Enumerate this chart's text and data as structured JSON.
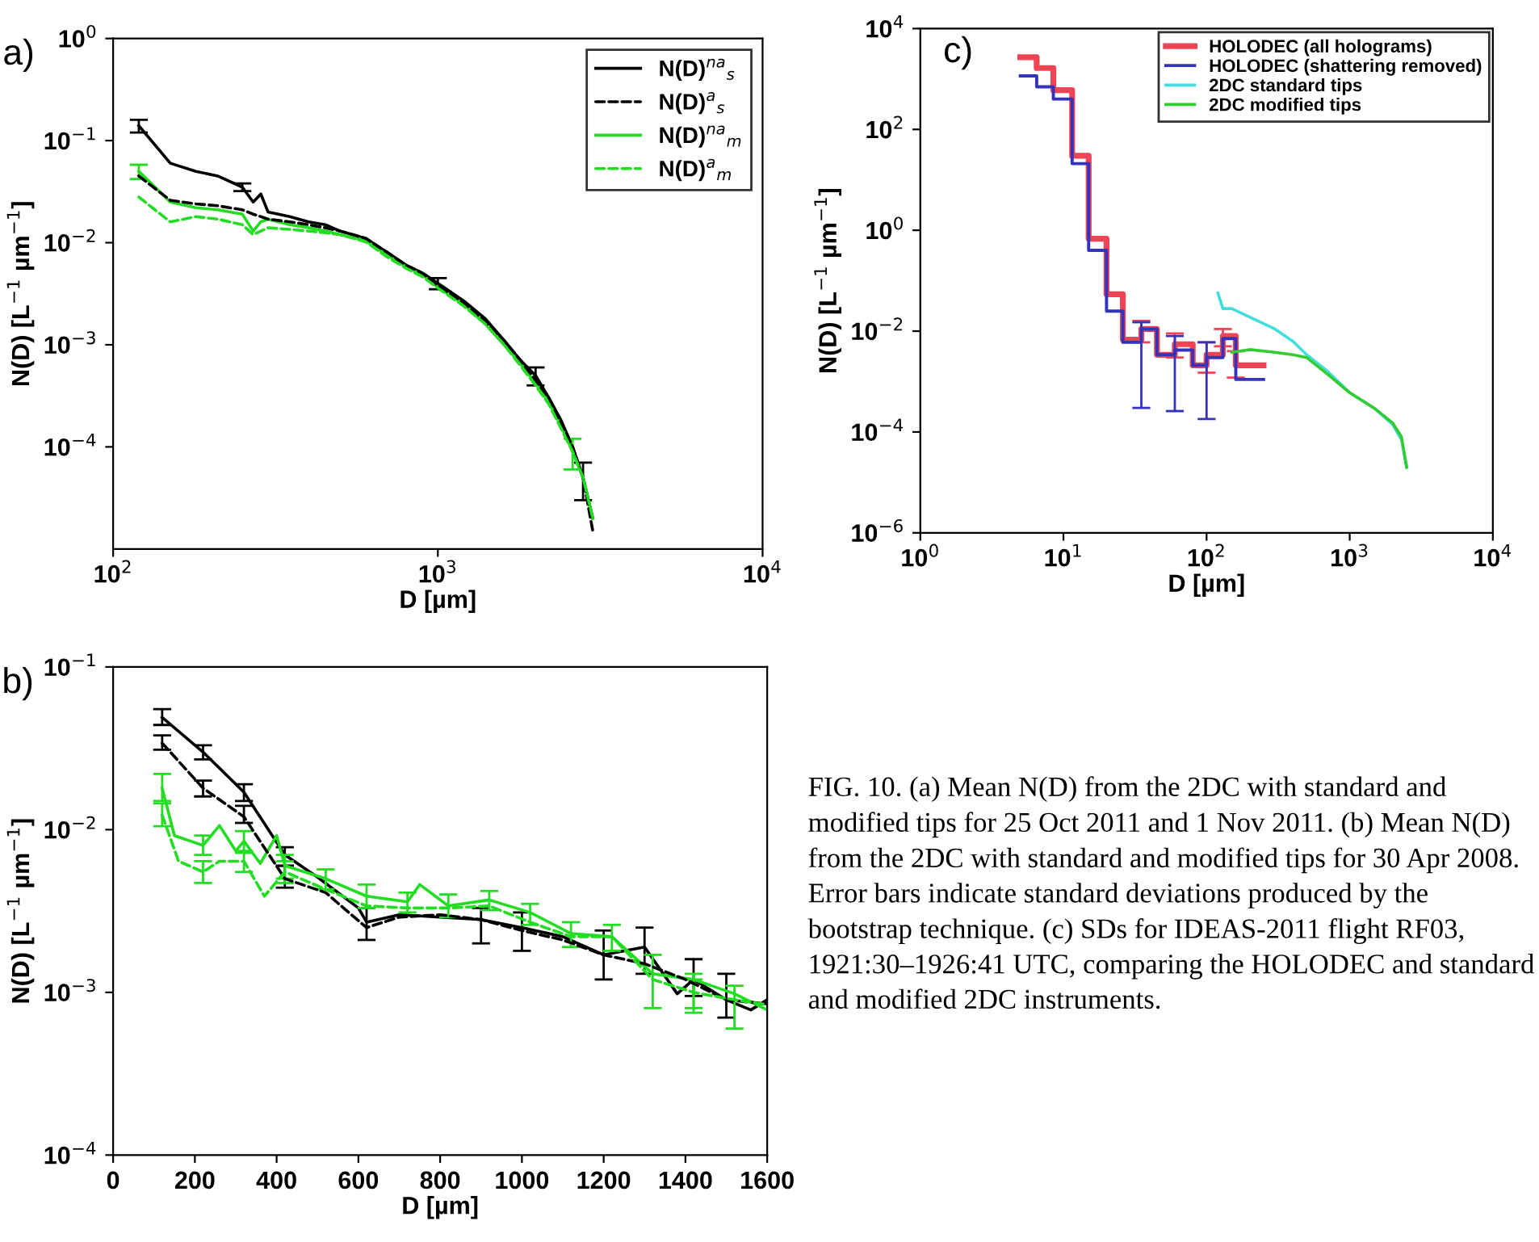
{
  "chart_data": [
    {
      "type": "line",
      "xlabel": "D [µm]",
      "ylabel": "N(D) [L$^{−1}$ µm$^{−1}$]",
      "log": "xy",
      "xlim": [
        100,
        10000
      ],
      "ylim": [
        1e-05,
        1
      ],
      "xticks": [
        {
          "value": 100,
          "label": "10$^{2}$"
        },
        {
          "value": 1000,
          "label": "10$^{3}$"
        },
        {
          "value": 10000,
          "label": "10$^{4}$"
        }
      ],
      "yticks": [
        {
          "value": 1,
          "label": "10$^{0}$"
        },
        {
          "value": 0.1,
          "label": "10$^{−1}$"
        },
        {
          "value": 0.01,
          "label": "10$^{−2}$"
        },
        {
          "value": 0.001,
          "label": "10$^{−3}$"
        },
        {
          "value": 0.0001,
          "label": "10$^{−4}$"
        }
      ],
      "legend": "top right",
      "grid": false,
      "annotations": [
        "a)"
      ],
      "x": [
        120,
        150,
        180,
        210,
        250,
        270,
        285,
        300,
        350,
        400,
        450,
        500,
        600,
        700,
        800,
        900,
        1000,
        1200,
        1400,
        1600,
        1800,
        2000,
        2200,
        2400,
        2600,
        2800,
        3000
      ],
      "series": [
        {
          "name": "N(D)$^{na}$$_{s}$",
          "color": "#000000",
          "line_style": "solid",
          "values": [
            0.14,
            0.06,
            0.05,
            0.045,
            0.035,
            0.025,
            0.03,
            0.02,
            0.018,
            0.016,
            0.015,
            0.013,
            0.011,
            0.008,
            0.006,
            0.005,
            0.004,
            0.0027,
            0.0018,
            0.0011,
            0.0007,
            0.0005,
            0.0003,
            0.00018,
            0.0001,
            5e-05,
            2e-05
          ],
          "errors": [
            [
              0.12,
              0.16
            ],
            null,
            null,
            null,
            [
              0.032,
              0.038
            ],
            null,
            null,
            null,
            null,
            null,
            null,
            null,
            null,
            null,
            null,
            null,
            [
              0.0035,
              0.0045
            ],
            null,
            null,
            null,
            null,
            [
              0.0004,
              0.0006
            ],
            null,
            null,
            null,
            [
              3e-05,
              7e-05
            ],
            null
          ]
        },
        {
          "name": "N(D)$^{a}$$_{s}$",
          "color": "#000000",
          "line_style": "dashed",
          "values": [
            0.045,
            0.026,
            0.024,
            0.023,
            0.021,
            0.019,
            0.018,
            0.017,
            0.016,
            0.015,
            0.014,
            0.013,
            0.011,
            0.008,
            0.006,
            0.005,
            0.0038,
            0.0026,
            0.0017,
            0.0011,
            0.0007,
            0.00045,
            0.0003,
            0.00017,
            0.0001,
            5e-05,
            1.5e-05
          ]
        },
        {
          "name": "N(D)$^{na}$$_{m}$",
          "color": "#22dd22",
          "line_style": "solid",
          "values": [
            0.05,
            0.025,
            0.022,
            0.021,
            0.019,
            0.013,
            0.016,
            0.017,
            0.015,
            0.014,
            0.013,
            0.012,
            0.0105,
            0.0075,
            0.0058,
            0.0048,
            0.0037,
            0.0025,
            0.0016,
            0.001,
            0.00065,
            0.00042,
            0.00027,
            0.00016,
            9e-05,
            5e-05,
            2e-05
          ],
          "errors": [
            [
              0.042,
              0.058
            ],
            null,
            null,
            null,
            null,
            null,
            null,
            null,
            null,
            null,
            null,
            null,
            null,
            null,
            null,
            null,
            null,
            null,
            null,
            null,
            null,
            null,
            null,
            null,
            [
              6e-05,
              0.00012
            ],
            null,
            null
          ]
        },
        {
          "name": "N(D)$^{a}$$_{m}$",
          "color": "#22dd22",
          "line_style": "dashed",
          "values": [
            0.028,
            0.016,
            0.018,
            0.017,
            0.015,
            0.012,
            0.013,
            0.014,
            0.0135,
            0.013,
            0.0125,
            0.012,
            0.0102,
            0.0072,
            0.0056,
            0.0046,
            0.0036,
            0.0024,
            0.0016,
            0.001,
            0.00062,
            0.0004,
            0.00026,
            0.00015,
            9e-05,
            5e-05,
            2e-05
          ]
        }
      ]
    },
    {
      "type": "line",
      "xlabel": "D [µm]",
      "ylabel": "N(D) [L$^{−1}$ µm$^{−1}$]",
      "log": "y",
      "xlim": [
        0,
        1600
      ],
      "ylim": [
        0.0001,
        0.1
      ],
      "xticks": [
        0,
        200,
        400,
        600,
        800,
        1000,
        1200,
        1400,
        1600
      ],
      "yticks": [
        {
          "value": 0.1,
          "label": "10$^{−1}$"
        },
        {
          "value": 0.01,
          "label": "10$^{−2}$"
        },
        {
          "value": 0.001,
          "label": "10$^{−3}$"
        },
        {
          "value": 0.0001,
          "label": "10$^{−4}$"
        }
      ],
      "legend": false,
      "grid": false,
      "annotations": [
        "b)"
      ],
      "series": [
        {
          "color": "#000000",
          "line_style": "solid",
          "x": [
            120,
            220,
            320,
            420,
            500,
            600,
            620,
            700,
            800,
            900,
            1000,
            1100,
            1200,
            1300,
            1380,
            1420,
            1500,
            1560,
            1600
          ],
          "values": [
            0.049,
            0.03,
            0.017,
            0.007,
            0.0051,
            0.0033,
            0.0027,
            0.003,
            0.0029,
            0.0028,
            0.0025,
            0.0022,
            0.0017,
            0.0019,
            0.00098,
            0.0012,
            0.0009,
            0.00078,
            0.0009
          ],
          "errors": [
            [
              0.044,
              0.055
            ],
            [
              0.027,
              0.033
            ],
            [
              0.015,
              0.019
            ],
            [
              0.006,
              0.0078
            ],
            null,
            null,
            [
              0.0021,
              0.0033
            ],
            null,
            null,
            [
              0.002,
              0.0033
            ],
            [
              0.0018,
              0.0031
            ],
            null,
            [
              0.0012,
              0.0024
            ],
            [
              0.0013,
              0.0025
            ],
            null,
            [
              0.00095,
              0.0016
            ],
            [
              0.0007,
              0.0013
            ],
            null,
            null
          ]
        },
        {
          "color": "#000000",
          "line_style": "dashed",
          "x": [
            120,
            220,
            320,
            420,
            520,
            620,
            700,
            800,
            900,
            1000,
            1100,
            1200,
            1300,
            1400,
            1500,
            1600
          ],
          "values": [
            0.034,
            0.018,
            0.012,
            0.005,
            0.0041,
            0.0025,
            0.0029,
            0.003,
            0.0028,
            0.0024,
            0.0021,
            0.0017,
            0.0015,
            0.0012,
            0.0009,
            0.00085
          ],
          "errors": [
            [
              0.031,
              0.038
            ],
            [
              0.016,
              0.02
            ],
            [
              0.011,
              0.014
            ],
            [
              0.0044,
              0.006
            ],
            null,
            null,
            null,
            null,
            null,
            null,
            null,
            null,
            null,
            null,
            null,
            null
          ]
        },
        {
          "color": "#22dd22",
          "line_style": "solid",
          "x": [
            120,
            150,
            220,
            260,
            300,
            320,
            360,
            400,
            420,
            520,
            620,
            720,
            750,
            820,
            920,
            1020,
            1120,
            1220,
            1320,
            1420,
            1520,
            1600
          ],
          "values": [
            0.018,
            0.0092,
            0.008,
            0.0106,
            0.0074,
            0.0085,
            0.0062,
            0.0092,
            0.006,
            0.005,
            0.0039,
            0.0036,
            0.0046,
            0.0034,
            0.0037,
            0.0031,
            0.0023,
            0.0022,
            0.0013,
            0.0012,
            0.00098,
            0.00078
          ],
          "errors": [
            [
              0.015,
              0.022
            ],
            null,
            [
              0.007,
              0.0092
            ],
            null,
            null,
            [
              0.0072,
              0.0098
            ],
            null,
            null,
            [
              0.005,
              0.007
            ],
            [
              0.0043,
              0.0057
            ],
            [
              0.0033,
              0.0046
            ],
            [
              0.0031,
              0.0041
            ],
            null,
            [
              0.0029,
              0.004
            ],
            [
              0.0032,
              0.0042
            ],
            [
              0.0026,
              0.0035
            ],
            [
              0.0019,
              0.0027
            ],
            [
              0.0018,
              0.0026
            ],
            [
              0.0008,
              0.0017
            ],
            [
              0.00075,
              0.0013
            ],
            [
              0.0006,
              0.0011
            ],
            null
          ]
        },
        {
          "color": "#22dd22",
          "line_style": "dashed",
          "x": [
            120,
            160,
            220,
            260,
            320,
            370,
            420,
            520,
            620,
            720,
            820,
            920,
            1020,
            1120,
            1220,
            1320,
            1420,
            1520,
            1600
          ],
          "values": [
            0.0123,
            0.0064,
            0.0055,
            0.0064,
            0.0064,
            0.0039,
            0.0055,
            0.0043,
            0.0034,
            0.0033,
            0.0033,
            0.0034,
            0.0027,
            0.0022,
            0.0022,
            0.0012,
            0.001,
            0.0009,
            0.00084
          ],
          "errors": [
            [
              0.0105,
              0.0145
            ],
            null,
            [
              0.0047,
              0.0064
            ],
            null,
            [
              0.0055,
              0.0074
            ],
            null,
            [
              0.0047,
              0.0064
            ],
            null,
            null,
            null,
            null,
            null,
            null,
            null,
            null,
            null,
            [
              0.0008,
              0.0012
            ],
            null,
            null
          ]
        }
      ]
    },
    {
      "type": "line",
      "xlabel": "D [µm]",
      "ylabel": "N(D) [L$^{−1}$ µm$^{−1}$]",
      "log": "xy",
      "xlim": [
        1,
        10000
      ],
      "ylim": [
        1e-06,
        10000
      ],
      "xticks": [
        {
          "value": 1,
          "label": "10$^{0}$"
        },
        {
          "value": 10,
          "label": "10$^{1}$"
        },
        {
          "value": 100,
          "label": "10$^{2}$"
        },
        {
          "value": 1000,
          "label": "10$^{3}$"
        },
        {
          "value": 10000,
          "label": "10$^{4}$"
        }
      ],
      "yticks": [
        {
          "value": 10000,
          "label": "10$^{4}$"
        },
        {
          "value": 100,
          "label": "10$^{2}$"
        },
        {
          "value": 1,
          "label": "10$^{0}$"
        },
        {
          "value": 0.01,
          "label": "10$^{−2}$"
        },
        {
          "value": 0.0001,
          "label": "10$^{−4}$"
        },
        {
          "value": 1e-06,
          "label": "10$^{−6}$"
        }
      ],
      "legend": "top right",
      "grid": false,
      "annotations": [
        "c)",
        "FIG. 10. (a) Mean N(D) from the 2DC with standard and modified tips for 25 Oct 2011 and 1 Nov 2011. (b) Mean N(D) from the 2DC with standard and modified tips for 30 Apr 2008. Error bars indicate standard deviations produced by the bootstrap technique. (c) SDs for IDEAS-2011 flight RF03, 1921:30–1926:41 UTC, comparing the HOLODEC and standard and modified 2DC instruments."
      ],
      "series": [
        {
          "name": "HOLODEC (all holograms)",
          "type": "step",
          "color": "#ee4455",
          "line_style": "solid",
          "x": [
            5,
            6.5,
            8.5,
            11.5,
            15,
            20,
            26,
            35,
            45,
            60,
            80,
            100,
            130,
            160,
            200,
            250
          ],
          "values": [
            2700,
            1650,
            600,
            30,
            0.68,
            0.054,
            0.0068,
            0.011,
            0.0034,
            0.0055,
            0.0021,
            0.0034,
            0.008,
            0.0021,
            0.0021,
            0.0021
          ],
          "errors": [
            null,
            null,
            null,
            null,
            null,
            null,
            null,
            [
              0.006,
              0.016
            ],
            null,
            [
              0.003,
              0.009
            ],
            null,
            [
              0.0015,
              0.006
            ],
            [
              0.005,
              0.011
            ],
            [
              0.0012,
              0.004
            ],
            null,
            null
          ]
        },
        {
          "name": "HOLODEC (shattering removed)",
          "type": "step",
          "color": "#3333bb",
          "line_style": "solid",
          "x": [
            5,
            6.5,
            8.5,
            11.5,
            15,
            20,
            26,
            35,
            45,
            60,
            80,
            100,
            130,
            160,
            200,
            250
          ],
          "values": [
            1150,
            700,
            400,
            21,
            0.4,
            0.025,
            0.006,
            0.011,
            0.0034,
            0.0042,
            0.0021,
            0.003,
            0.0071,
            0.0011,
            0.0011,
            0.0011
          ],
          "errors": [
            null,
            null,
            null,
            null,
            null,
            null,
            null,
            [
              0.0003,
              0.015
            ],
            null,
            [
              0.00026,
              0.008
            ],
            null,
            [
              0.00018,
              0.006
            ],
            null,
            null,
            null,
            null
          ]
        },
        {
          "name": "2DC standard tips",
          "color": "#44dddd",
          "line_style": "solid",
          "x": [
            120,
            130,
            150,
            200,
            300,
            400,
            500,
            700,
            1000,
            1500,
            2000,
            2300,
            2500
          ],
          "values": [
            0.057,
            0.028,
            0.028,
            0.019,
            0.011,
            0.0063,
            0.0034,
            0.0016,
            0.0006,
            0.00029,
            0.00014,
            7e-05,
            2e-05
          ]
        },
        {
          "name": "2DC modified tips",
          "color": "#33cc33",
          "line_style": "solid",
          "x": [
            150,
            200,
            300,
            400,
            500,
            700,
            1000,
            1500,
            2000,
            2300,
            2500
          ],
          "values": [
            0.0038,
            0.0043,
            0.0038,
            0.0034,
            0.003,
            0.0014,
            0.0006,
            0.00029,
            0.00015,
            8e-05,
            2e-05
          ]
        }
      ]
    }
  ]
}
